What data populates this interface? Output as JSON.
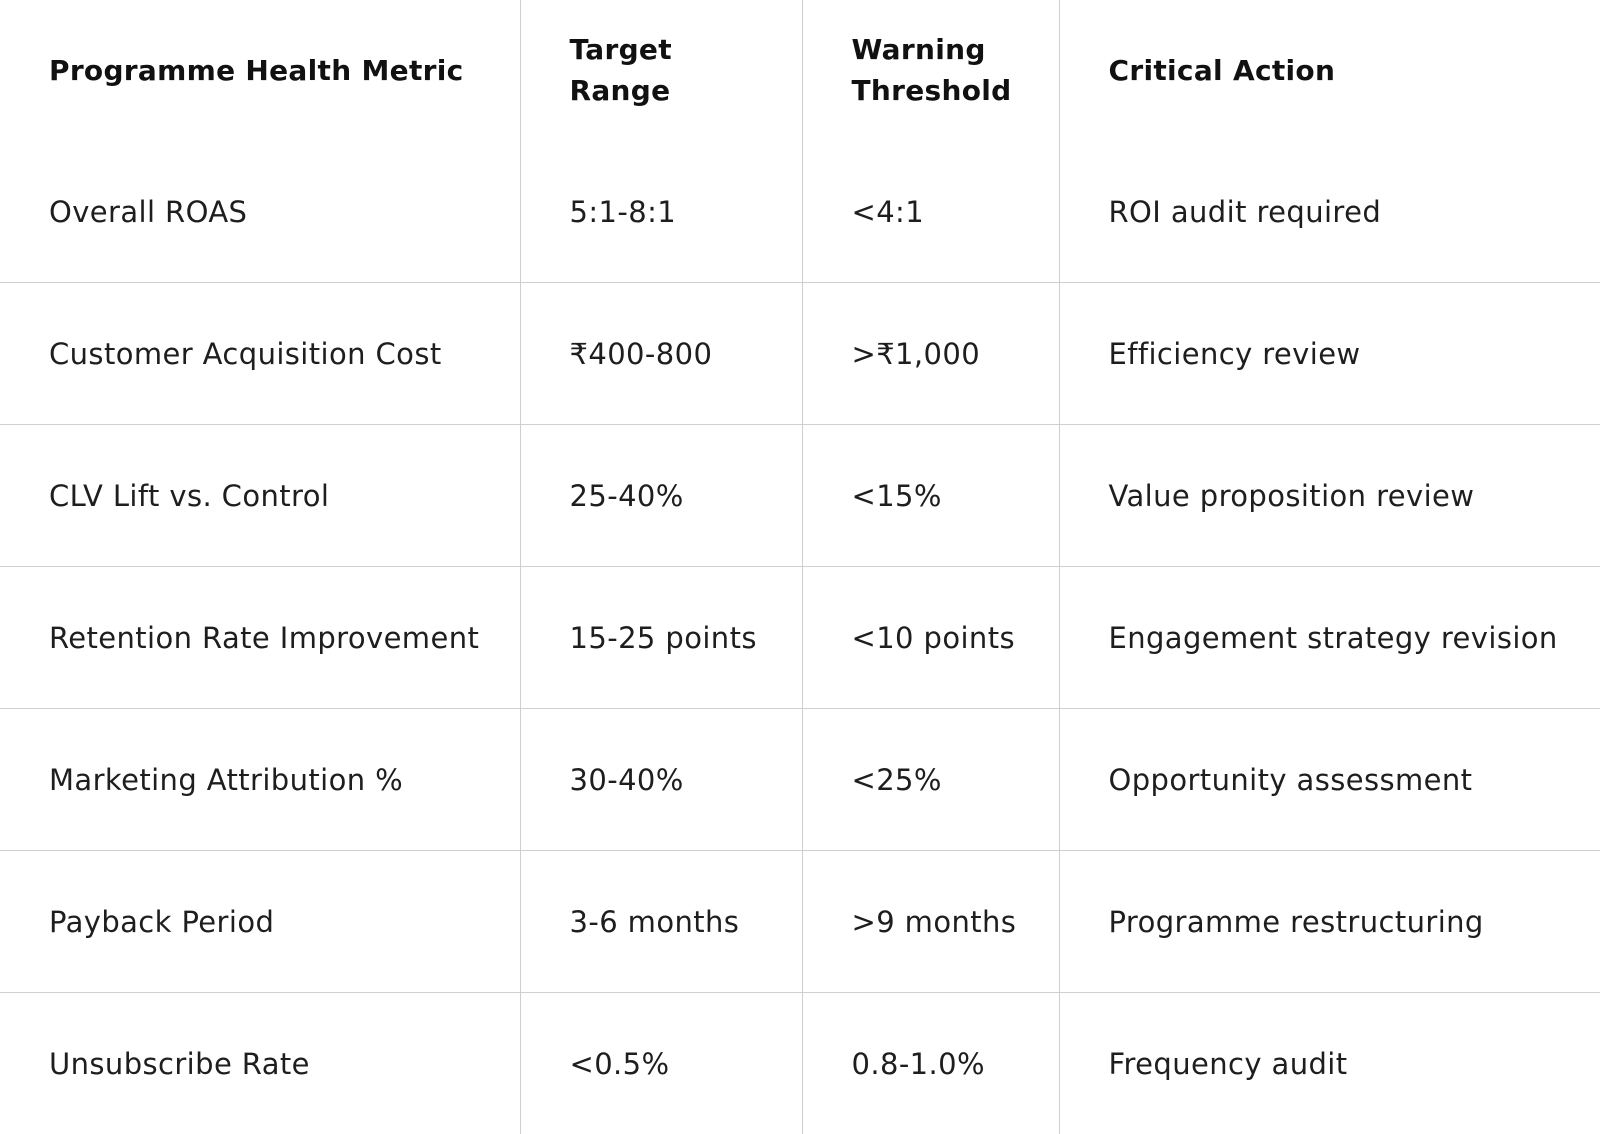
{
  "table": {
    "headers": [
      "Programme Health Metric",
      "Target Range",
      "Warning Threshold",
      "Critical Action"
    ],
    "rows": [
      [
        "Overall ROAS",
        "5:1-8:1",
        "<4:1",
        "ROI audit required"
      ],
      [
        "Customer Acquisition Cost",
        "₹400-800",
        ">₹1,000",
        "Efficiency review"
      ],
      [
        "CLV Lift vs. Control",
        "25-40%",
        "<15%",
        "Value proposition review"
      ],
      [
        "Retention Rate Improvement",
        "15-25 points",
        "<10 points",
        "Engagement strategy revision"
      ],
      [
        "Marketing Attribution %",
        "30-40%",
        "<25%",
        "Opportunity assessment"
      ],
      [
        "Payback Period",
        "3-6 months",
        ">9 months",
        "Programme restructuring"
      ],
      [
        "Unsubscribe Rate",
        "<0.5%",
        "0.8-1.0%",
        "Frequency audit"
      ]
    ]
  }
}
